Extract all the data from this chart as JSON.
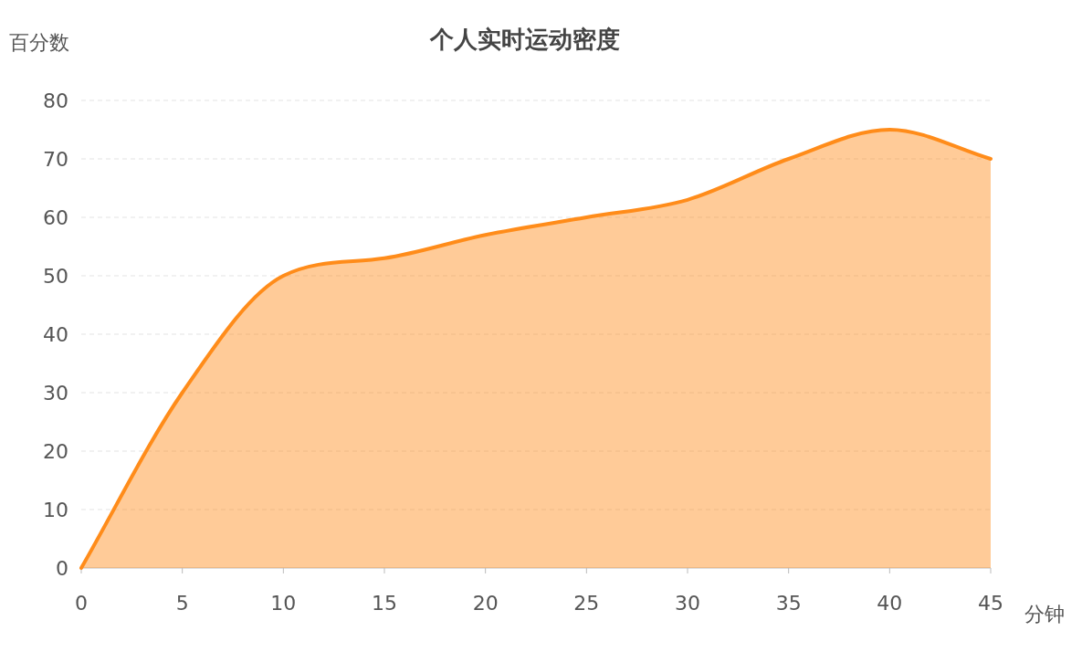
{
  "chart_data": {
    "type": "area",
    "title": "个人实时运动密度",
    "xlabel": "分钟",
    "ylabel": "百分数",
    "x": [
      0,
      5,
      10,
      15,
      20,
      25,
      30,
      35,
      40,
      45
    ],
    "values": [
      0,
      30,
      50,
      53,
      57,
      60,
      63,
      70,
      75,
      70
    ],
    "color": "#ff8c1a",
    "xlim": [
      0,
      45
    ],
    "xticks": [
      0,
      5,
      10,
      15,
      20,
      25,
      30,
      35,
      40,
      45
    ],
    "ylim": [
      0,
      80
    ],
    "yticks": [
      0,
      10,
      20,
      30,
      40,
      50,
      60,
      70,
      80
    ],
    "grid": "y"
  }
}
